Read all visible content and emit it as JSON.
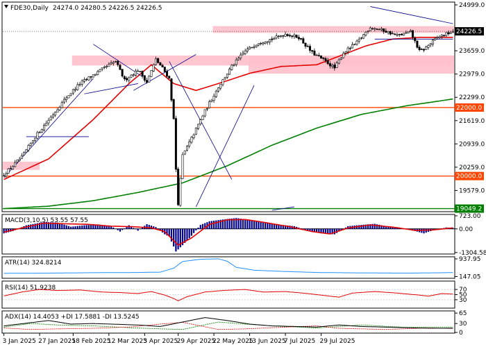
{
  "header": {
    "symbol_label": "FDE30,Daily",
    "ohlc": "24274.0 24280.5 24226.5 24226.5"
  },
  "chart_data": {
    "type": "candlestick",
    "symbol": "FDE30",
    "timeframe": "Daily",
    "date_labels": [
      "3 Jan 2025",
      "27 Jan 2025",
      "18 Feb 2025",
      "12 Mar 2025",
      "3 Apr 2025",
      "29 Apr 2025",
      "22 May 2025",
      "13 Jun 2025",
      "7 Jul 2025",
      "29 Jul 2025"
    ],
    "y_ticks": [
      {
        "value": 24999.0,
        "label": "24999.0"
      },
      {
        "value": 23659.0,
        "label": "23659.0"
      },
      {
        "value": 22979.0,
        "label": "22979.0"
      },
      {
        "value": 22299.0,
        "label": "22299.0"
      },
      {
        "value": 21619.0,
        "label": "21619.0"
      },
      {
        "value": 20939.0,
        "label": "20939.0"
      },
      {
        "value": 20259.0,
        "label": "20259.0"
      },
      {
        "value": 19579.0,
        "label": "19579.0"
      }
    ],
    "y_range": [
      18980,
      25060
    ],
    "last_price": {
      "value": 24226.5,
      "label": "24226.5"
    },
    "horizontal_levels": [
      {
        "value": 22000.0,
        "label": "22000.0",
        "color": "#ff4500"
      },
      {
        "value": 20000.0,
        "label": "20000.0",
        "color": "#ff4500"
      },
      {
        "value": 19049.2,
        "label": "19049.2",
        "color": "#008000"
      }
    ],
    "zones": [
      {
        "from": 24180,
        "to": 24380,
        "x_start": "22 May 2025",
        "x_end": "end"
      },
      {
        "from": 23230,
        "to": 23520,
        "x_start": "18 Feb 2025",
        "x_end": "end"
      },
      {
        "from": 22990,
        "to": 23520,
        "x_start": "13 Jun 2025",
        "x_end": "end"
      },
      {
        "from": 20180,
        "to": 20420,
        "x_start": "3 Jan 2025",
        "x_end": "27 Jan 2025"
      }
    ],
    "price_anchor_points": [
      [
        0,
        20050
      ],
      [
        8,
        20550
      ],
      [
        14,
        21150
      ],
      [
        22,
        21800
      ],
      [
        28,
        22300
      ],
      [
        34,
        22700
      ],
      [
        40,
        22950
      ],
      [
        46,
        23200
      ],
      [
        50,
        23350
      ],
      [
        54,
        22800
      ],
      [
        60,
        23100
      ],
      [
        64,
        22750
      ],
      [
        68,
        23400
      ],
      [
        71,
        23150
      ],
      [
        74,
        22850
      ],
      [
        76,
        21650
      ],
      [
        77,
        20200
      ],
      [
        78,
        19200
      ],
      [
        80,
        20600
      ],
      [
        84,
        21100
      ],
      [
        90,
        21900
      ],
      [
        96,
        22600
      ],
      [
        102,
        23200
      ],
      [
        108,
        23650
      ],
      [
        114,
        23900
      ],
      [
        120,
        24000
      ],
      [
        126,
        24150
      ],
      [
        132,
        24050
      ],
      [
        138,
        23600
      ],
      [
        144,
        23350
      ],
      [
        148,
        23150
      ],
      [
        152,
        23600
      ],
      [
        158,
        23900
      ],
      [
        164,
        24350
      ],
      [
        170,
        24250
      ],
      [
        176,
        24100
      ],
      [
        182,
        24200
      ],
      [
        186,
        23650
      ],
      [
        188,
        23700
      ],
      [
        194,
        24050
      ],
      [
        198,
        24150
      ],
      [
        201,
        24226.5
      ]
    ],
    "moving_averages": [
      {
        "name": "MA red",
        "color": "#e30000",
        "points": [
          [
            0,
            19900
          ],
          [
            20,
            20500
          ],
          [
            40,
            21650
          ],
          [
            56,
            22700
          ],
          [
            66,
            23250
          ],
          [
            76,
            22700
          ],
          [
            86,
            22500
          ],
          [
            96,
            22700
          ],
          [
            110,
            23000
          ],
          [
            124,
            23200
          ],
          [
            140,
            23250
          ],
          [
            150,
            23500
          ],
          [
            162,
            23800
          ],
          [
            174,
            24000
          ],
          [
            186,
            24050
          ],
          [
            201,
            24050
          ]
        ]
      },
      {
        "name": "MA green",
        "color": "#008000",
        "points": [
          [
            0,
            19050
          ],
          [
            20,
            19120
          ],
          [
            40,
            19280
          ],
          [
            60,
            19520
          ],
          [
            80,
            19800
          ],
          [
            100,
            20300
          ],
          [
            120,
            20900
          ],
          [
            140,
            21400
          ],
          [
            160,
            21800
          ],
          [
            180,
            22050
          ],
          [
            201,
            22250
          ]
        ]
      }
    ],
    "trend_lines": [
      {
        "from": [
          0,
          19950
        ],
        "to": [
          40,
          22850
        ]
      },
      {
        "from": [
          36,
          22400
        ],
        "to": [
          60,
          22700
        ]
      },
      {
        "from": [
          40,
          23850
        ],
        "to": [
          62,
          22900
        ]
      },
      {
        "from": [
          58,
          22500
        ],
        "to": [
          86,
          23550
        ]
      },
      {
        "from": [
          74,
          23350
        ],
        "to": [
          102,
          19900
        ]
      },
      {
        "from": [
          86,
          19100
        ],
        "to": [
          112,
          22650
        ]
      },
      {
        "from": [
          164,
          24950
        ],
        "to": [
          201,
          24450
        ]
      },
      {
        "from": [
          10,
          21150
        ],
        "to": [
          38,
          21150
        ]
      },
      {
        "from": [
          166,
          24000
        ],
        "to": [
          201,
          24000
        ]
      },
      {
        "from": [
          120,
          19000
        ],
        "to": [
          130,
          19100
        ]
      }
    ],
    "panels": [
      {
        "title": "MACD(3,10,5) 53.55 57.55",
        "y_range": [
          -1350,
          760
        ],
        "ticks": [
          {
            "value": 723.0,
            "label": "723.00"
          },
          {
            "value": 0.0,
            "label": "0.00"
          },
          {
            "value": -1304.58,
            "label": "-1304.58"
          }
        ],
        "histogram_anchors": [
          [
            0,
            -250
          ],
          [
            4,
            -120
          ],
          [
            10,
            200
          ],
          [
            18,
            380
          ],
          [
            24,
            350
          ],
          [
            30,
            120
          ],
          [
            36,
            200
          ],
          [
            42,
            250
          ],
          [
            48,
            150
          ],
          [
            52,
            -150
          ],
          [
            56,
            200
          ],
          [
            60,
            -100
          ],
          [
            64,
            260
          ],
          [
            68,
            100
          ],
          [
            72,
            -300
          ],
          [
            74,
            -420
          ],
          [
            77,
            -1250
          ],
          [
            80,
            -900
          ],
          [
            84,
            -380
          ],
          [
            88,
            220
          ],
          [
            92,
            420
          ],
          [
            98,
            520
          ],
          [
            104,
            600
          ],
          [
            110,
            500
          ],
          [
            116,
            380
          ],
          [
            122,
            250
          ],
          [
            130,
            150
          ],
          [
            136,
            -80
          ],
          [
            142,
            -250
          ],
          [
            148,
            -300
          ],
          [
            154,
            150
          ],
          [
            160,
            220
          ],
          [
            166,
            280
          ],
          [
            172,
            120
          ],
          [
            178,
            50
          ],
          [
            184,
            -120
          ],
          [
            188,
            -250
          ],
          [
            192,
            -80
          ],
          [
            198,
            80
          ],
          [
            201,
            53
          ]
        ],
        "signal_anchors": [
          [
            0,
            -180
          ],
          [
            8,
            50
          ],
          [
            18,
            320
          ],
          [
            28,
            280
          ],
          [
            38,
            250
          ],
          [
            48,
            150
          ],
          [
            58,
            120
          ],
          [
            66,
            60
          ],
          [
            72,
            -150
          ],
          [
            78,
            -900
          ],
          [
            84,
            -500
          ],
          [
            92,
            250
          ],
          [
            100,
            500
          ],
          [
            108,
            520
          ],
          [
            118,
            330
          ],
          [
            128,
            120
          ],
          [
            138,
            -150
          ],
          [
            146,
            -280
          ],
          [
            154,
            50
          ],
          [
            164,
            220
          ],
          [
            174,
            100
          ],
          [
            184,
            -80
          ],
          [
            192,
            -60
          ],
          [
            201,
            57
          ]
        ]
      },
      {
        "title": "ATR(14) 324.8214",
        "y_range": [
          100,
          1000
        ],
        "ticks": [
          {
            "value": 937.95,
            "label": "937.95"
          },
          {
            "value": 147.05,
            "label": "147.05"
          }
        ],
        "line_anchors": [
          [
            0,
            290
          ],
          [
            20,
            300
          ],
          [
            40,
            320
          ],
          [
            60,
            330
          ],
          [
            70,
            345
          ],
          [
            76,
            520
          ],
          [
            80,
            820
          ],
          [
            88,
            920
          ],
          [
            96,
            940
          ],
          [
            100,
            830
          ],
          [
            104,
            560
          ],
          [
            112,
            430
          ],
          [
            124,
            380
          ],
          [
            140,
            330
          ],
          [
            160,
            310
          ],
          [
            180,
            300
          ],
          [
            190,
            310
          ],
          [
            201,
            325
          ]
        ]
      },
      {
        "title": "RSI(14) 51.9238",
        "y_range": [
          0,
          100
        ],
        "ticks": [
          {
            "value": 70,
            "label": "70"
          },
          {
            "value": 50,
            "label": "50"
          },
          {
            "value": 30,
            "label": "30"
          }
        ],
        "line_anchors": [
          [
            0,
            45
          ],
          [
            8,
            60
          ],
          [
            16,
            70
          ],
          [
            24,
            66
          ],
          [
            34,
            68
          ],
          [
            44,
            60
          ],
          [
            52,
            58
          ],
          [
            60,
            54
          ],
          [
            66,
            62
          ],
          [
            72,
            48
          ],
          [
            76,
            35
          ],
          [
            78,
            26
          ],
          [
            82,
            42
          ],
          [
            90,
            60
          ],
          [
            98,
            66
          ],
          [
            108,
            70
          ],
          [
            116,
            60
          ],
          [
            126,
            62
          ],
          [
            136,
            54
          ],
          [
            146,
            44
          ],
          [
            150,
            40
          ],
          [
            156,
            56
          ],
          [
            166,
            62
          ],
          [
            176,
            56
          ],
          [
            186,
            48
          ],
          [
            190,
            44
          ],
          [
            196,
            54
          ],
          [
            201,
            52
          ]
        ]
      },
      {
        "title": "ADX(14) 14.4053 +DI 17.5881 -DI 13.5245",
        "y_range": [
          0,
          70
        ],
        "ticks": [
          {
            "value": 65,
            "label": "65"
          },
          {
            "value": 30,
            "label": "30"
          },
          {
            "value": 0,
            "label": "0"
          }
        ],
        "adx_anchors": [
          [
            0,
            22
          ],
          [
            20,
            40
          ],
          [
            30,
            28
          ],
          [
            40,
            30
          ],
          [
            60,
            25
          ],
          [
            70,
            20
          ],
          [
            80,
            35
          ],
          [
            90,
            50
          ],
          [
            100,
            40
          ],
          [
            110,
            28
          ],
          [
            120,
            22
          ],
          [
            140,
            18
          ],
          [
            150,
            25
          ],
          [
            160,
            20
          ],
          [
            170,
            18
          ],
          [
            180,
            16
          ],
          [
            190,
            14
          ],
          [
            201,
            14
          ]
        ],
        "plus_di_anchors": [
          [
            0,
            18
          ],
          [
            12,
            30
          ],
          [
            24,
            25
          ],
          [
            40,
            22
          ],
          [
            56,
            16
          ],
          [
            70,
            12
          ],
          [
            80,
            10
          ],
          [
            96,
            35
          ],
          [
            108,
            28
          ],
          [
            120,
            22
          ],
          [
            140,
            15
          ],
          [
            160,
            25
          ],
          [
            180,
            17
          ],
          [
            201,
            18
          ]
        ],
        "minus_di_anchors": [
          [
            0,
            15
          ],
          [
            12,
            10
          ],
          [
            24,
            12
          ],
          [
            40,
            14
          ],
          [
            56,
            18
          ],
          [
            70,
            28
          ],
          [
            80,
            34
          ],
          [
            96,
            10
          ],
          [
            108,
            12
          ],
          [
            120,
            16
          ],
          [
            140,
            22
          ],
          [
            150,
            14
          ],
          [
            170,
            10
          ],
          [
            190,
            15
          ],
          [
            201,
            13
          ]
        ]
      }
    ]
  },
  "colors": {
    "up": "#ffffff",
    "down": "#000000",
    "grid": "#dcdcdc",
    "zone": "#ffc0cb",
    "macd_hist": "#00008b",
    "macd_signal": "#e30000",
    "atr": "#1e90ff",
    "rsi": "#e30000",
    "adx": "#000000",
    "plus_di": "#008000",
    "minus_di": "#e30000"
  }
}
